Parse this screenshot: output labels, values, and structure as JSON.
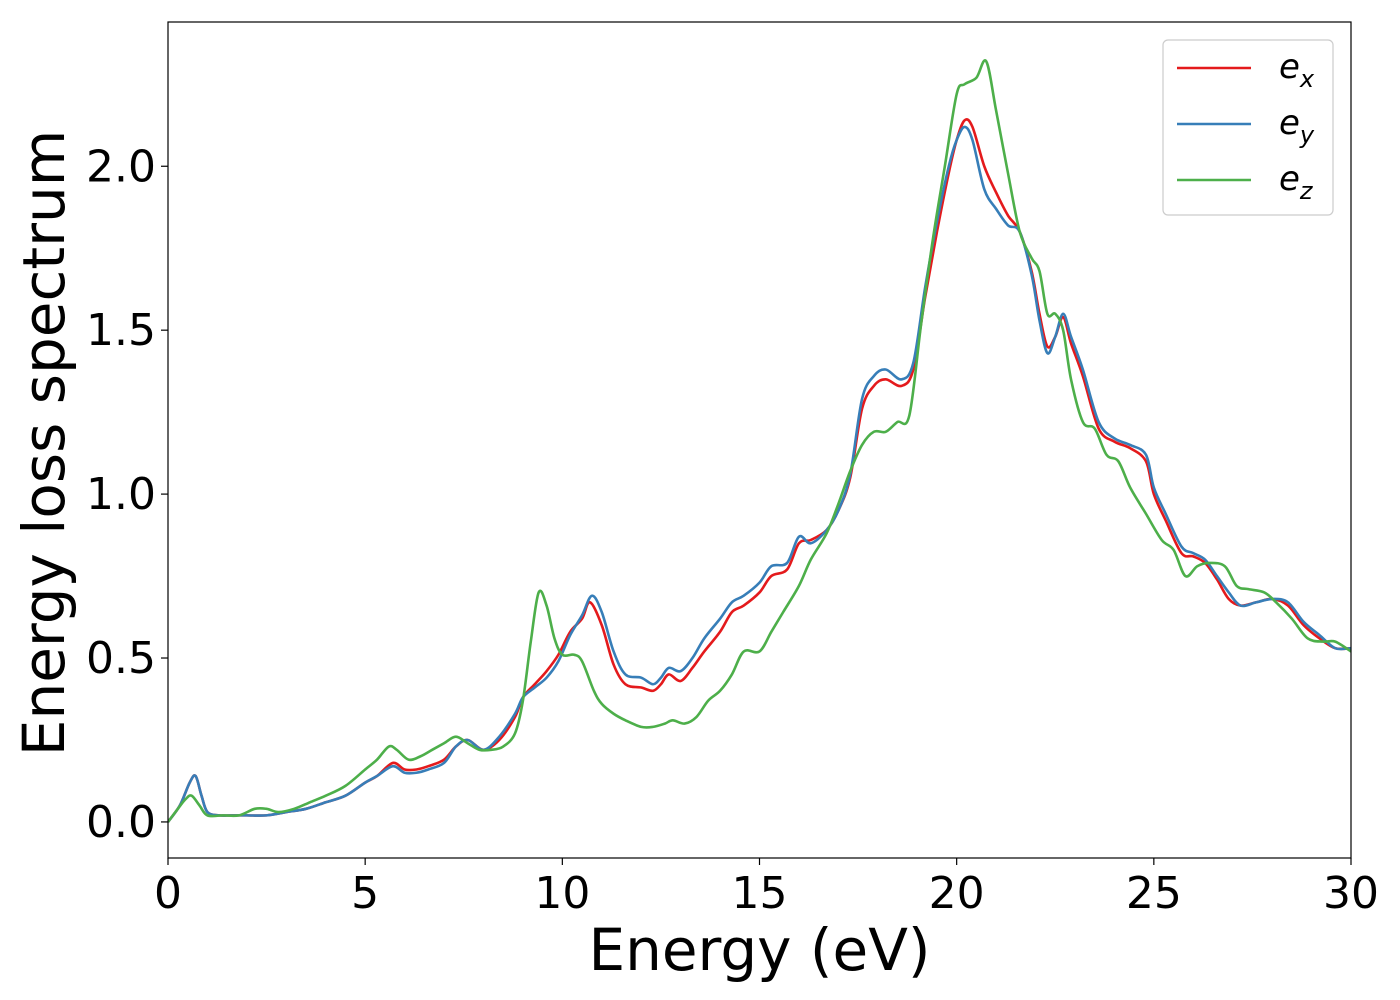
{
  "chart_data": {
    "type": "line",
    "title": "",
    "xlabel": "Energy (eV)",
    "ylabel": "Energy loss spectrum",
    "xlim": [
      0,
      30
    ],
    "ylim": [
      -0.11,
      2.44
    ],
    "xticks": [
      0,
      5,
      10,
      15,
      20,
      25,
      30
    ],
    "xtick_labels": [
      "0",
      "5",
      "10",
      "15",
      "20",
      "25",
      "30"
    ],
    "yticks": [
      0.0,
      0.5,
      1.0,
      1.5,
      2.0
    ],
    "ytick_labels": [
      "0.0",
      "0.5",
      "1.0",
      "1.5",
      "2.0"
    ],
    "grid": false,
    "legend_position": "top-right",
    "series": [
      {
        "name": "e_x",
        "legend_base": "e",
        "legend_sub": "x",
        "color": "#e41a1c",
        "x": [
          0,
          0.3,
          0.55,
          0.7,
          0.85,
          1.0,
          1.3,
          1.6,
          2.0,
          2.5,
          3.0,
          3.5,
          4.0,
          4.5,
          5.0,
          5.3,
          5.7,
          6.0,
          6.3,
          6.6,
          7.0,
          7.3,
          7.6,
          8.0,
          8.4,
          8.8,
          9.0,
          9.3,
          9.6,
          9.9,
          10.2,
          10.5,
          10.7,
          11.0,
          11.3,
          11.6,
          12.0,
          12.3,
          12.5,
          12.7,
          13.0,
          13.3,
          13.6,
          14.0,
          14.3,
          14.6,
          15.0,
          15.3,
          15.7,
          16.0,
          16.3,
          16.7,
          17.0,
          17.3,
          17.6,
          17.9,
          18.2,
          18.6,
          18.9,
          19.2,
          19.5,
          19.8,
          20.0,
          20.2,
          20.4,
          20.7,
          21.0,
          21.3,
          21.6,
          21.9,
          22.1,
          22.3,
          22.5,
          22.7,
          22.9,
          23.2,
          23.6,
          24.0,
          24.4,
          24.8,
          25.0,
          25.3,
          25.7,
          26.0,
          26.3,
          26.6,
          26.9,
          27.2,
          27.6,
          28.0,
          28.4,
          28.8,
          29.2,
          29.6,
          30.0
        ],
        "y": [
          0.0,
          0.05,
          0.12,
          0.14,
          0.08,
          0.03,
          0.02,
          0.02,
          0.02,
          0.02,
          0.03,
          0.04,
          0.06,
          0.08,
          0.12,
          0.14,
          0.18,
          0.16,
          0.16,
          0.17,
          0.19,
          0.23,
          0.25,
          0.22,
          0.25,
          0.32,
          0.38,
          0.42,
          0.46,
          0.51,
          0.58,
          0.62,
          0.67,
          0.6,
          0.48,
          0.42,
          0.41,
          0.4,
          0.42,
          0.45,
          0.43,
          0.47,
          0.52,
          0.58,
          0.64,
          0.66,
          0.7,
          0.75,
          0.77,
          0.85,
          0.86,
          0.89,
          0.95,
          1.05,
          1.26,
          1.33,
          1.35,
          1.33,
          1.38,
          1.6,
          1.8,
          1.98,
          2.08,
          2.14,
          2.12,
          2.0,
          1.92,
          1.85,
          1.8,
          1.68,
          1.55,
          1.45,
          1.48,
          1.54,
          1.46,
          1.36,
          1.2,
          1.16,
          1.14,
          1.1,
          1.0,
          0.92,
          0.82,
          0.81,
          0.79,
          0.74,
          0.68,
          0.66,
          0.67,
          0.68,
          0.66,
          0.6,
          0.56,
          0.53,
          0.53
        ]
      },
      {
        "name": "e_y",
        "legend_base": "e",
        "legend_sub": "y",
        "color": "#377eb8",
        "x": [
          0,
          0.3,
          0.55,
          0.7,
          0.85,
          1.0,
          1.3,
          1.6,
          2.0,
          2.5,
          3.0,
          3.5,
          4.0,
          4.5,
          5.0,
          5.3,
          5.7,
          6.0,
          6.3,
          6.6,
          7.0,
          7.3,
          7.6,
          8.0,
          8.4,
          8.8,
          9.0,
          9.3,
          9.6,
          9.9,
          10.2,
          10.5,
          10.75,
          11.0,
          11.3,
          11.6,
          12.0,
          12.3,
          12.5,
          12.7,
          13.0,
          13.3,
          13.6,
          14.0,
          14.3,
          14.6,
          15.0,
          15.3,
          15.7,
          16.0,
          16.3,
          16.7,
          17.0,
          17.3,
          17.6,
          17.9,
          18.2,
          18.6,
          18.9,
          19.2,
          19.5,
          19.8,
          20.0,
          20.2,
          20.4,
          20.7,
          21.0,
          21.3,
          21.6,
          21.9,
          22.1,
          22.3,
          22.5,
          22.7,
          22.9,
          23.2,
          23.6,
          24.0,
          24.4,
          24.8,
          25.0,
          25.3,
          25.7,
          26.0,
          26.3,
          26.6,
          26.9,
          27.2,
          27.6,
          28.0,
          28.4,
          28.8,
          29.2,
          29.6,
          30.0
        ],
        "y": [
          0.0,
          0.05,
          0.12,
          0.14,
          0.08,
          0.03,
          0.02,
          0.02,
          0.02,
          0.02,
          0.03,
          0.04,
          0.06,
          0.08,
          0.12,
          0.14,
          0.17,
          0.15,
          0.15,
          0.16,
          0.18,
          0.23,
          0.25,
          0.22,
          0.26,
          0.33,
          0.38,
          0.41,
          0.44,
          0.49,
          0.57,
          0.63,
          0.69,
          0.64,
          0.52,
          0.45,
          0.44,
          0.42,
          0.44,
          0.47,
          0.46,
          0.5,
          0.56,
          0.62,
          0.67,
          0.69,
          0.73,
          0.78,
          0.79,
          0.87,
          0.85,
          0.89,
          0.95,
          1.06,
          1.29,
          1.36,
          1.38,
          1.35,
          1.4,
          1.63,
          1.83,
          2.0,
          2.08,
          2.12,
          2.08,
          1.93,
          1.87,
          1.82,
          1.8,
          1.67,
          1.53,
          1.43,
          1.48,
          1.55,
          1.48,
          1.38,
          1.22,
          1.17,
          1.15,
          1.12,
          1.02,
          0.94,
          0.84,
          0.82,
          0.8,
          0.75,
          0.7,
          0.66,
          0.67,
          0.68,
          0.67,
          0.61,
          0.57,
          0.53,
          0.53
        ]
      },
      {
        "name": "e_z",
        "legend_base": "e",
        "legend_sub": "z",
        "color": "#4daf4a",
        "x": [
          0,
          0.25,
          0.45,
          0.6,
          0.8,
          1.0,
          1.4,
          1.8,
          2.2,
          2.5,
          2.8,
          3.2,
          3.6,
          4.0,
          4.5,
          5.0,
          5.3,
          5.6,
          5.8,
          6.1,
          6.4,
          6.7,
          7.0,
          7.3,
          7.6,
          7.9,
          8.2,
          8.5,
          8.8,
          9.0,
          9.2,
          9.4,
          9.6,
          9.8,
          10.0,
          10.3,
          10.5,
          10.8,
          11.0,
          11.3,
          11.6,
          12.0,
          12.3,
          12.6,
          12.8,
          13.1,
          13.4,
          13.7,
          14.0,
          14.3,
          14.6,
          15.0,
          15.3,
          15.6,
          16.0,
          16.3,
          16.7,
          17.0,
          17.3,
          17.6,
          17.9,
          18.2,
          18.5,
          18.8,
          19.1,
          19.4,
          19.7,
          20.0,
          20.2,
          20.5,
          20.75,
          21.0,
          21.3,
          21.6,
          21.9,
          22.1,
          22.3,
          22.5,
          22.7,
          22.9,
          23.2,
          23.5,
          23.8,
          24.1,
          24.4,
          24.8,
          25.2,
          25.5,
          25.8,
          26.1,
          26.4,
          26.8,
          27.1,
          27.4,
          27.8,
          28.1,
          28.5,
          28.9,
          29.3,
          29.6,
          30.0
        ],
        "y": [
          0.0,
          0.04,
          0.07,
          0.08,
          0.05,
          0.02,
          0.02,
          0.02,
          0.04,
          0.04,
          0.03,
          0.04,
          0.06,
          0.08,
          0.11,
          0.16,
          0.19,
          0.23,
          0.22,
          0.19,
          0.2,
          0.22,
          0.24,
          0.26,
          0.24,
          0.22,
          0.22,
          0.23,
          0.27,
          0.37,
          0.55,
          0.7,
          0.66,
          0.56,
          0.51,
          0.51,
          0.49,
          0.4,
          0.36,
          0.33,
          0.31,
          0.29,
          0.29,
          0.3,
          0.31,
          0.3,
          0.32,
          0.37,
          0.4,
          0.45,
          0.52,
          0.52,
          0.58,
          0.64,
          0.72,
          0.8,
          0.88,
          0.97,
          1.07,
          1.15,
          1.19,
          1.19,
          1.22,
          1.24,
          1.52,
          1.78,
          2.0,
          2.22,
          2.25,
          2.27,
          2.32,
          2.17,
          1.98,
          1.8,
          1.72,
          1.68,
          1.55,
          1.55,
          1.5,
          1.35,
          1.22,
          1.2,
          1.12,
          1.1,
          1.02,
          0.94,
          0.86,
          0.83,
          0.75,
          0.78,
          0.79,
          0.78,
          0.72,
          0.71,
          0.7,
          0.67,
          0.62,
          0.56,
          0.55,
          0.55,
          0.52
        ]
      }
    ]
  }
}
